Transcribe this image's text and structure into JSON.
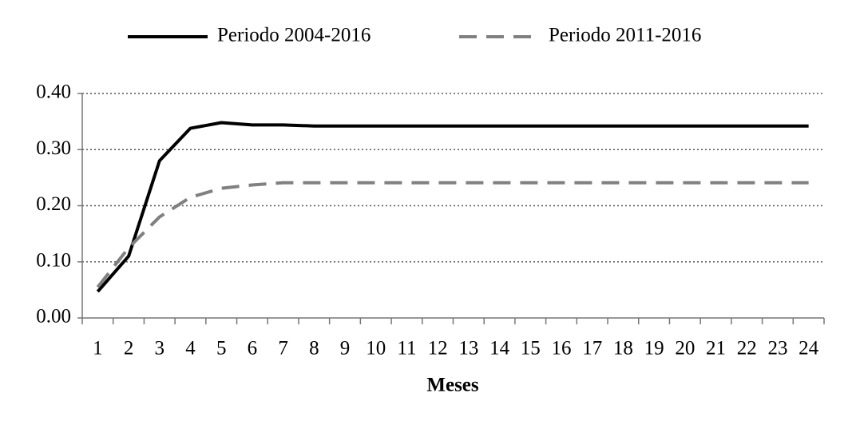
{
  "chart_data": {
    "type": "line",
    "x_label": "Meses",
    "categories": [
      "1",
      "2",
      "3",
      "4",
      "5",
      "6",
      "7",
      "8",
      "9",
      "10",
      "11",
      "12",
      "13",
      "14",
      "15",
      "16",
      "17",
      "18",
      "19",
      "20",
      "21",
      "22",
      "23",
      "24"
    ],
    "series": [
      {
        "name": "Periodo 2004-2016",
        "color": "#000000",
        "dashed": false,
        "values": [
          0.047,
          0.11,
          0.28,
          0.338,
          0.348,
          0.344,
          0.344,
          0.342,
          0.342,
          0.342,
          0.342,
          0.342,
          0.342,
          0.342,
          0.342,
          0.342,
          0.342,
          0.342,
          0.342,
          0.342,
          0.342,
          0.342,
          0.342,
          0.342
        ]
      },
      {
        "name": "Periodo 2011-2016",
        "color": "#808080",
        "dashed": true,
        "values": [
          0.055,
          0.125,
          0.18,
          0.215,
          0.231,
          0.237,
          0.241,
          0.241,
          0.241,
          0.241,
          0.241,
          0.241,
          0.241,
          0.241,
          0.241,
          0.241,
          0.241,
          0.241,
          0.241,
          0.241,
          0.241,
          0.241,
          0.241,
          0.241
        ]
      }
    ],
    "ylim": [
      0,
      0.4
    ],
    "yticks": [
      {
        "value": 0,
        "label": "0.00"
      },
      {
        "value": 0.1,
        "label": "0.10"
      },
      {
        "value": 0.2,
        "label": "0.20"
      },
      {
        "value": 0.3,
        "label": "0.30"
      },
      {
        "value": 0.4,
        "label": "0.40"
      }
    ],
    "grid": true,
    "legend": "top"
  }
}
